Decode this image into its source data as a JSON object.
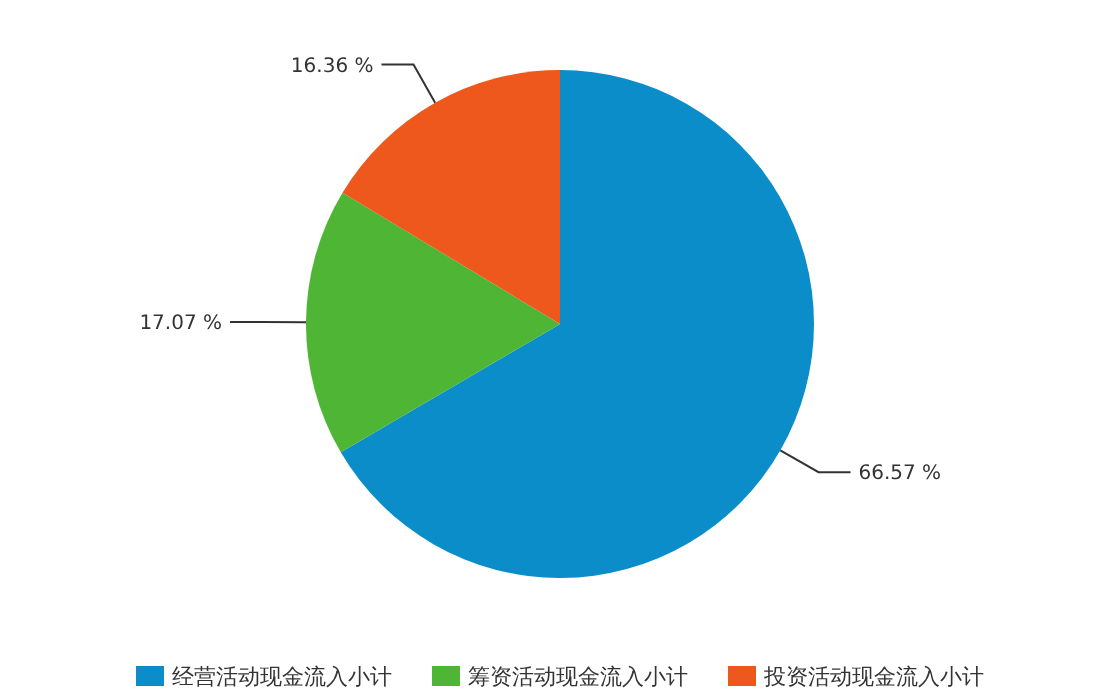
{
  "chart_data": {
    "type": "pie",
    "categories": [
      "经营活动现金流入小计",
      "筹资活动现金流入小计",
      "投资活动现金流入小计"
    ],
    "values": [
      66.57,
      17.07,
      16.36
    ],
    "colors": [
      "#0a8dc8",
      "#4eb535",
      "#ee581d"
    ],
    "value_labels": [
      "66.57 %",
      "17.07 %",
      "16.36 %"
    ],
    "legend": "bottom"
  }
}
